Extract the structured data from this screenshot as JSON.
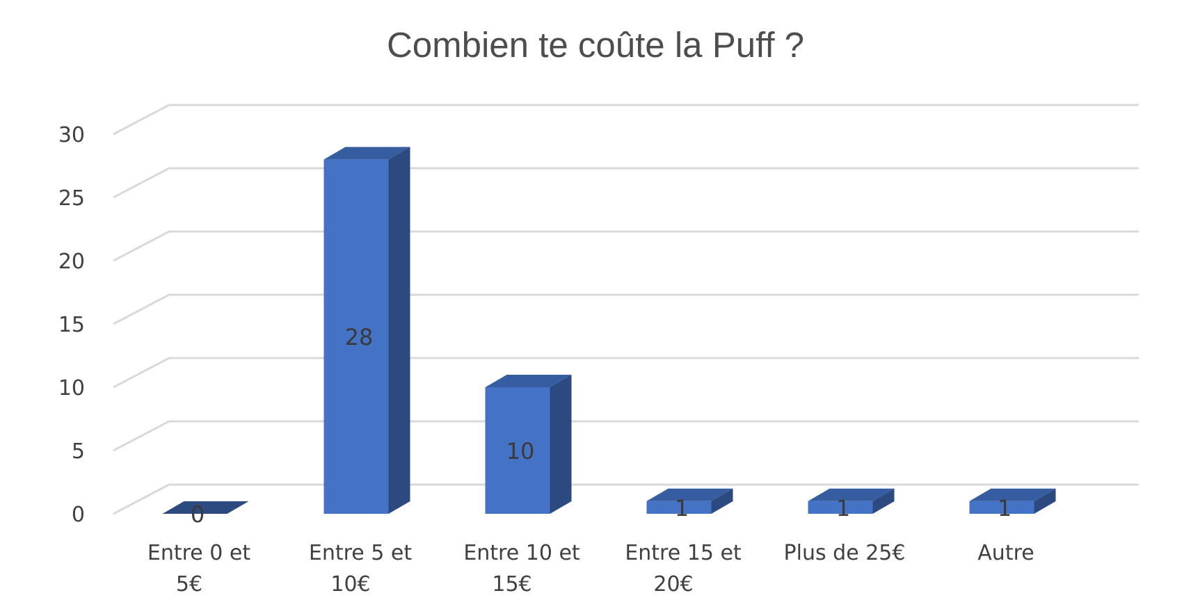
{
  "chart_data": {
    "type": "bar",
    "style": "3d-column",
    "title": "Combien te coûte la Puff ?",
    "categories": [
      [
        "Entre 0 et",
        "5€"
      ],
      [
        "Entre 5 et",
        "10€"
      ],
      [
        "Entre 10 et",
        "15€"
      ],
      [
        "Entre 15 et",
        "20€"
      ],
      [
        "Plus de 25€"
      ],
      [
        "Autre"
      ]
    ],
    "values": [
      0,
      28,
      10,
      1,
      1,
      1
    ],
    "data_labels": [
      "0",
      "28",
      "10",
      "1",
      "1",
      "1"
    ],
    "ylim": [
      0,
      30
    ],
    "yticks": [
      0,
      5,
      10,
      15,
      20,
      25,
      30
    ],
    "grid": true,
    "legend": "none",
    "colors": {
      "bar_front": "#4472c4",
      "bar_side": "#2c4a80",
      "bar_top": "#365d9f",
      "grid": "#d9d9d9",
      "text": "#404040"
    }
  }
}
